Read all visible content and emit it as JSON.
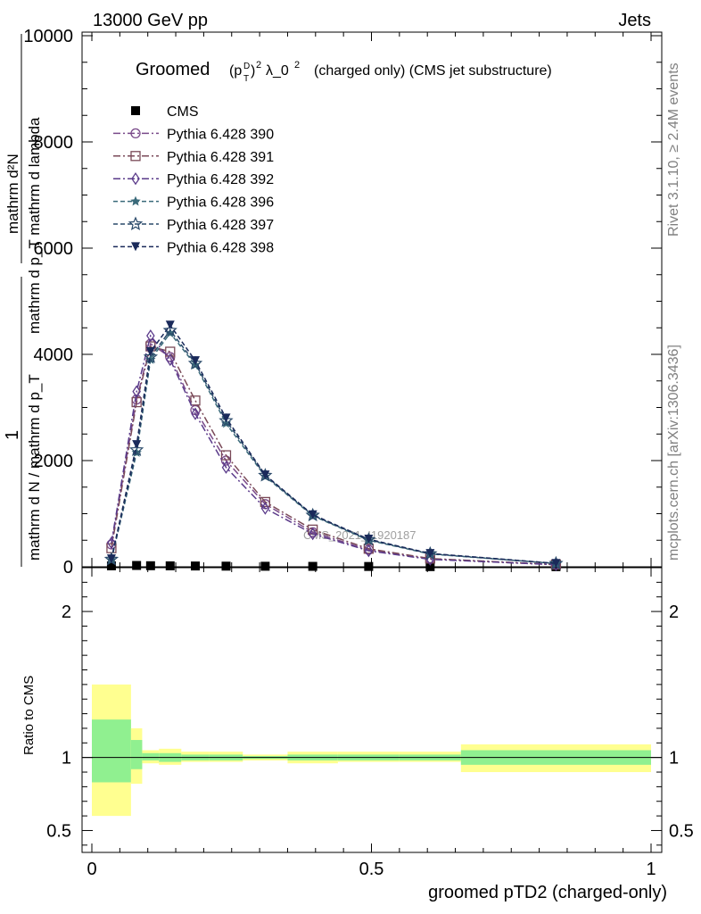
{
  "header": {
    "left": "13000 GeV pp",
    "right": "Jets"
  },
  "side_labels": {
    "rivet": "Rivet 3.1.10, ≥ 2.4M events",
    "mcplots": "mcplots.cern.ch [arXiv:1306.3436]"
  },
  "watermark": "CMS_2021_I1920187",
  "chart_data": [
    {
      "type": "line",
      "title": "(charged only) (CMS jet substructure)",
      "title_prefix": "Groomed",
      "title_math": "(p_T^D)^2 λ_0^2",
      "xlim": [
        0,
        1
      ],
      "ylim": [
        0,
        10000
      ],
      "y_ticks": [
        0,
        2000,
        4000,
        6000,
        8000,
        10000
      ],
      "y_tick_labels": [
        "0",
        "2000",
        "4000",
        "6000",
        "8000",
        "10000"
      ],
      "ylabel_numerator": "mathrm d²N",
      "ylabel_denominator": "mathrm d p_T mathrm d lambda",
      "ylabel_prefix_numerator": "1",
      "ylabel_prefix_denominator": "mathrm d N / mathrm d p_T",
      "legend_position": "top-left",
      "bins": [
        0,
        0.07,
        0.09,
        0.12,
        0.16,
        0.21,
        0.27,
        0.35,
        0.44,
        0.55,
        0.66,
        1.0
      ],
      "x": [
        0.035,
        0.08,
        0.105,
        0.14,
        0.185,
        0.24,
        0.31,
        0.395,
        0.495,
        0.605,
        0.83
      ],
      "series": [
        {
          "name": "CMS",
          "color": "#000000",
          "marker": "square-filled",
          "dash": "none",
          "y": [
            18,
            25,
            20,
            18,
            15,
            12,
            10,
            8,
            6,
            3,
            2
          ]
        },
        {
          "name": "Pythia 6.428 390",
          "color": "#7a4a8a",
          "marker": "circle-open",
          "dash": "dashdot",
          "y": [
            420,
            3150,
            4200,
            3950,
            2950,
            2000,
            1180,
            650,
            320,
            150,
            40
          ]
        },
        {
          "name": "Pythia 6.428 391",
          "color": "#7a4a58",
          "marker": "square-open",
          "dash": "dashdot",
          "y": [
            350,
            3100,
            4150,
            4050,
            3130,
            2100,
            1220,
            700,
            340,
            155,
            42
          ]
        },
        {
          "name": "Pythia 6.428 392",
          "color": "#5a3a8a",
          "marker": "diamond-open",
          "dash": "dashdot",
          "y": [
            450,
            3300,
            4350,
            3900,
            2880,
            1870,
            1100,
            620,
            300,
            140,
            38
          ]
        },
        {
          "name": "Pythia 6.428 396",
          "color": "#3a6a7a",
          "marker": "star-filled",
          "dash": "dash",
          "y": [
            130,
            2150,
            3900,
            4400,
            3800,
            2700,
            1700,
            960,
            500,
            240,
            60
          ]
        },
        {
          "name": "Pythia 6.428 397",
          "color": "#2a4a6a",
          "marker": "star-open",
          "dash": "dash",
          "y": [
            140,
            2200,
            3950,
            4450,
            3830,
            2750,
            1720,
            970,
            510,
            245,
            62
          ]
        },
        {
          "name": "Pythia 6.428 398",
          "color": "#1a2a5a",
          "marker": "triangle-down-filled",
          "dash": "dash",
          "y": [
            150,
            2300,
            4050,
            4550,
            3880,
            2800,
            1730,
            980,
            520,
            250,
            64
          ]
        }
      ]
    },
    {
      "type": "area",
      "ylabel": "Ratio to CMS",
      "xlabel": "groomed pTD2 (charged-only)",
      "xlim": [
        0,
        1
      ],
      "ylim": [
        0.35,
        2.3
      ],
      "y_ticks": [
        0.5,
        1,
        2
      ],
      "y_tick_labels": [
        "0.5",
        "1",
        "2"
      ],
      "x_ticks": [
        0,
        0.5,
        1
      ],
      "x_tick_labels": [
        "0",
        "0.5",
        "1"
      ],
      "reference": 1,
      "bands": [
        {
          "lo": 0.0,
          "hi": 0.07,
          "inner": [
            0.83,
            1.26
          ],
          "outer": [
            0.6,
            1.5
          ]
        },
        {
          "lo": 0.07,
          "hi": 0.09,
          "inner": [
            0.92,
            1.12
          ],
          "outer": [
            0.82,
            1.2
          ]
        },
        {
          "lo": 0.09,
          "hi": 0.12,
          "inner": [
            0.98,
            1.03
          ],
          "outer": [
            0.96,
            1.05
          ]
        },
        {
          "lo": 0.12,
          "hi": 0.16,
          "inner": [
            0.97,
            1.03
          ],
          "outer": [
            0.95,
            1.06
          ]
        },
        {
          "lo": 0.16,
          "hi": 0.21,
          "inner": [
            0.98,
            1.02
          ],
          "outer": [
            0.97,
            1.04
          ]
        },
        {
          "lo": 0.21,
          "hi": 0.27,
          "inner": [
            0.98,
            1.02
          ],
          "outer": [
            0.97,
            1.04
          ]
        },
        {
          "lo": 0.27,
          "hi": 0.35,
          "inner": [
            0.99,
            1.01
          ],
          "outer": [
            0.98,
            1.02
          ]
        },
        {
          "lo": 0.35,
          "hi": 0.44,
          "inner": [
            0.98,
            1.02
          ],
          "outer": [
            0.96,
            1.04
          ]
        },
        {
          "lo": 0.44,
          "hi": 0.55,
          "inner": [
            0.98,
            1.02
          ],
          "outer": [
            0.97,
            1.04
          ]
        },
        {
          "lo": 0.55,
          "hi": 0.66,
          "inner": [
            0.98,
            1.02
          ],
          "outer": [
            0.97,
            1.04
          ]
        },
        {
          "lo": 0.66,
          "hi": 1.0,
          "inner": [
            0.95,
            1.05
          ],
          "outer": [
            0.9,
            1.09
          ]
        }
      ],
      "inner_color": "#90f090",
      "outer_color": "#ffff90"
    }
  ]
}
